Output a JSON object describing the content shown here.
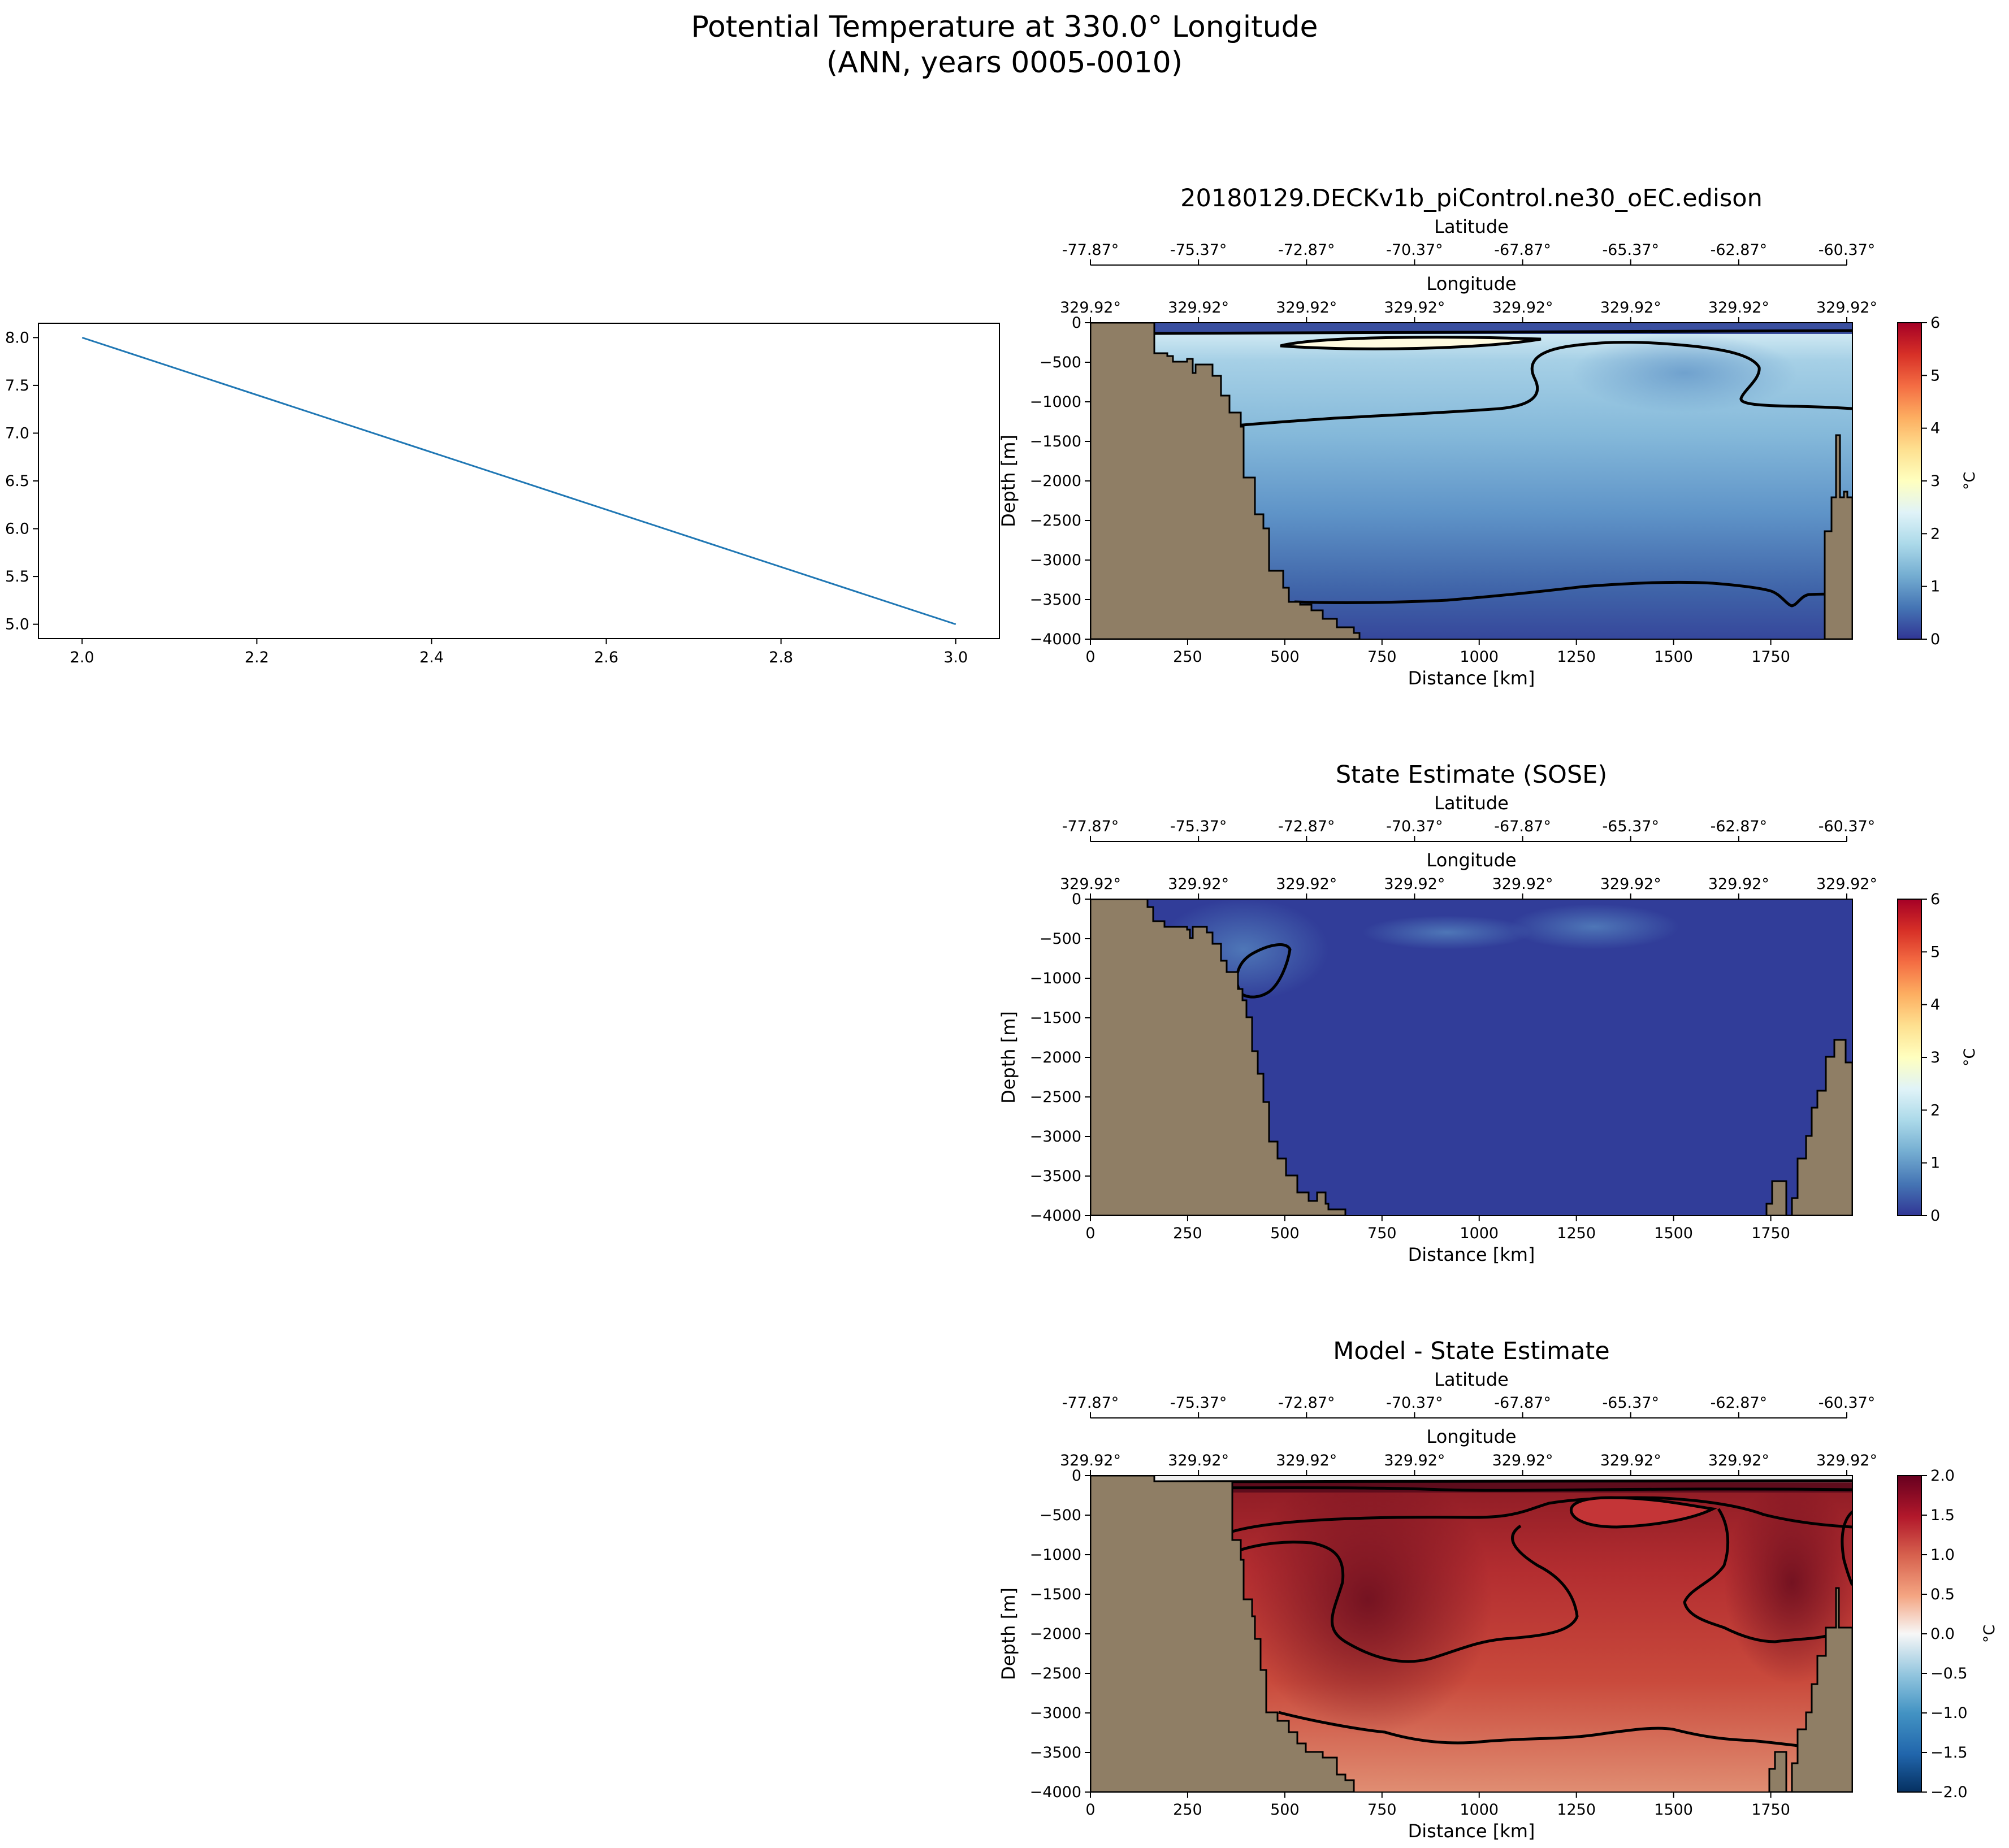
{
  "figure": {
    "title_line1": "Potential Temperature at 330.0° Longitude",
    "title_line2": "(ANN, years 0005-0010)"
  },
  "colors": {
    "land": "#8f7e65",
    "line_series": "#1f77b4",
    "contour": "#000000"
  },
  "chart_data": [
    {
      "type": "line",
      "x": [
        2.0,
        3.0
      ],
      "series": [
        {
          "values": [
            8.0,
            5.0
          ]
        }
      ],
      "xlim": [
        1.95,
        3.05
      ],
      "ylim": [
        4.85,
        8.15
      ],
      "xticks": [
        "2.0",
        "2.2",
        "2.4",
        "2.6",
        "2.8",
        "3.0"
      ],
      "yticks": [
        "5.0",
        "5.5",
        "6.0",
        "6.5",
        "7.0",
        "7.5",
        "8.0"
      ],
      "grid": false
    },
    {
      "type": "heatmap",
      "title": "20180129.DECKv1b_piControl.ne30_oEC.edison",
      "xlabel": "Distance [km]",
      "ylabel": "Depth [m]",
      "top_axis1_label": "Latitude",
      "top_axis2_label": "Longitude",
      "latitude_ticks": [
        "-77.87°",
        "-75.37°",
        "-72.87°",
        "-70.37°",
        "-67.87°",
        "-65.37°",
        "-62.87°",
        "-60.37°"
      ],
      "longitude_ticks": [
        "329.92°",
        "329.92°",
        "329.92°",
        "329.92°",
        "329.92°",
        "329.92°",
        "329.92°",
        "329.92°"
      ],
      "xticks": [
        "0",
        "250",
        "500",
        "750",
        "1000",
        "1250",
        "1500",
        "1750"
      ],
      "yticks": [
        "0",
        "−500",
        "−1000",
        "−1500",
        "−2000",
        "−2500",
        "−3000",
        "−3500",
        "−4000"
      ],
      "xlim": [
        0,
        1960
      ],
      "ylim": [
        -4000,
        0
      ],
      "colorbar": {
        "label": "°C",
        "ticks": [
          "0",
          "1",
          "2",
          "3",
          "4",
          "5",
          "6"
        ],
        "range": [
          0,
          6
        ],
        "colormap": "RdYlBu_r"
      }
    },
    {
      "type": "heatmap",
      "title": "State Estimate (SOSE)",
      "xlabel": "Distance [km]",
      "ylabel": "Depth [m]",
      "top_axis1_label": "Latitude",
      "top_axis2_label": "Longitude",
      "latitude_ticks": [
        "-77.87°",
        "-75.37°",
        "-72.87°",
        "-70.37°",
        "-67.87°",
        "-65.37°",
        "-62.87°",
        "-60.37°"
      ],
      "longitude_ticks": [
        "329.92°",
        "329.92°",
        "329.92°",
        "329.92°",
        "329.92°",
        "329.92°",
        "329.92°",
        "329.92°"
      ],
      "xticks": [
        "0",
        "250",
        "500",
        "750",
        "1000",
        "1250",
        "1500",
        "1750"
      ],
      "yticks": [
        "0",
        "−500",
        "−1000",
        "−1500",
        "−2000",
        "−2500",
        "−3000",
        "−3500",
        "−4000"
      ],
      "xlim": [
        0,
        1960
      ],
      "ylim": [
        -4000,
        0
      ],
      "colorbar": {
        "label": "°C",
        "ticks": [
          "0",
          "1",
          "2",
          "3",
          "4",
          "5",
          "6"
        ],
        "range": [
          0,
          6
        ],
        "colormap": "RdYlBu_r"
      }
    },
    {
      "type": "heatmap",
      "title": "Model - State Estimate",
      "xlabel": "Distance [km]",
      "ylabel": "Depth [m]",
      "top_axis1_label": "Latitude",
      "top_axis2_label": "Longitude",
      "latitude_ticks": [
        "-77.87°",
        "-75.37°",
        "-72.87°",
        "-70.37°",
        "-67.87°",
        "-65.37°",
        "-62.87°",
        "-60.37°"
      ],
      "longitude_ticks": [
        "329.92°",
        "329.92°",
        "329.92°",
        "329.92°",
        "329.92°",
        "329.92°",
        "329.92°",
        "329.92°"
      ],
      "xticks": [
        "0",
        "250",
        "500",
        "750",
        "1000",
        "1250",
        "1500",
        "1750"
      ],
      "yticks": [
        "0",
        "−500",
        "−1000",
        "−1500",
        "−2000",
        "−2500",
        "−3000",
        "−3500",
        "−4000"
      ],
      "xlim": [
        0,
        1960
      ],
      "ylim": [
        -4000,
        0
      ],
      "colorbar": {
        "label": "°C",
        "ticks": [
          "−2.0",
          "−1.5",
          "−1.0",
          "−0.5",
          "0.0",
          "0.5",
          "1.0",
          "1.5",
          "2.0"
        ],
        "range": [
          -2,
          2
        ],
        "colormap": "RdBu_r"
      }
    }
  ]
}
